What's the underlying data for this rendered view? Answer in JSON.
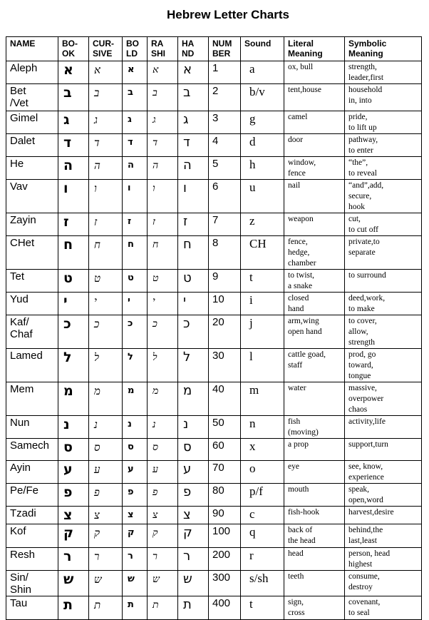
{
  "title": "Hebrew Letter Charts",
  "headers": [
    "NAME",
    "BO-\nOK",
    "CUR-\nSIVE",
    "BO\nLD",
    "RA\nSHI",
    "HA\nND",
    "NUM\nBER",
    "Sound",
    "Literal\nMeaning",
    "Symbolic\nMeaning"
  ],
  "rows": [
    {
      "name": "Aleph",
      "letter": "א",
      "number": "1",
      "sound": "a",
      "literal": "ox, bull",
      "symbolic": "strength,\nleader,first"
    },
    {
      "name": "Bet\n/Vet",
      "letter": "ב",
      "number": "2",
      "sound": "b/v",
      "literal": "tent,house",
      "symbolic": "household\nin,  into"
    },
    {
      "name": "Gimel",
      "letter": "ג",
      "number": "3",
      "sound": "g",
      "literal": "camel",
      "symbolic": "pride,\nto lift up"
    },
    {
      "name": "Dalet",
      "letter": "ד",
      "number": "4",
      "sound": "d",
      "literal": "door",
      "symbolic": "pathway,\nto enter"
    },
    {
      "name": "He",
      "letter": "ה",
      "number": "5",
      "sound": "h",
      "literal": "window,\nfence",
      "symbolic": "“the”,\nto reveal"
    },
    {
      "name": "Vav",
      "letter": "ו",
      "number": "6",
      "sound": "u",
      "literal": "nail",
      "symbolic": "“and”,add,\nsecure,\nhook"
    },
    {
      "name": "Zayin",
      "letter": "ז",
      "number": "7",
      "sound": "z",
      "literal": "weapon",
      "symbolic": "cut,\nto cut off"
    },
    {
      "name": "CHet",
      "letter": "ח",
      "number": "8",
      "sound": "CH",
      "literal": "fence,\nhedge,\nchamber",
      "symbolic": "private,to\nseparate"
    },
    {
      "name": "Tet",
      "letter": "ט",
      "number": "9",
      "sound": "t",
      "literal": "to twist,\na snake",
      "symbolic": "to surround"
    },
    {
      "name": "Yud",
      "letter": "י",
      "number": "10",
      "sound": "i",
      "literal": "closed\nhand",
      "symbolic": "deed,work,\nto make"
    },
    {
      "name": "Kaf/\nChaf",
      "letter": "כ",
      "number": "20",
      "sound": "j",
      "literal": "arm,wing\nopen hand",
      "symbolic": "to cover,\nallow,\nstrength"
    },
    {
      "name": "Lamed",
      "letter": "ל",
      "number": "30",
      "sound": "l",
      "literal": "cattle goad,\nstaff",
      "symbolic": "prod, go\ntoward,\ntongue"
    },
    {
      "name": "Mem",
      "letter": "מ",
      "number": "40",
      "sound": "m",
      "literal": "water",
      "symbolic": "massive,\noverpower\nchaos"
    },
    {
      "name": "Nun",
      "letter": "נ",
      "number": "50",
      "sound": "n",
      "literal": "fish\n(moving)",
      "symbolic": "activity,life"
    },
    {
      "name": "Samech",
      "letter": "ס",
      "number": "60",
      "sound": "x",
      "literal": "a prop",
      "symbolic": "support,turn"
    },
    {
      "name": "Ayin",
      "letter": "ע",
      "number": "70",
      "sound": "o",
      "literal": "eye",
      "symbolic": "see, know,\nexperience"
    },
    {
      "name": "Pe/Fe",
      "letter": "פ",
      "number": "80",
      "sound": "p/f",
      "literal": "mouth",
      "symbolic": "speak,\nopen,word"
    },
    {
      "name": "Tzadi",
      "letter": "צ",
      "number": "90",
      "sound": "c",
      "literal": "fish-hook",
      "symbolic": "harvest,desire"
    },
    {
      "name": "Kof",
      "letter": "ק",
      "number": "100",
      "sound": "q",
      "literal": "back of\nthe head",
      "symbolic": "behind,the\nlast,least"
    },
    {
      "name": "Resh",
      "letter": "ר",
      "number": "200",
      "sound": "r",
      "literal": "head",
      "symbolic": "person, head\n highest"
    },
    {
      "name": "Sin/\nShin",
      "letter": "ש",
      "number": "300",
      "sound": "s/sh",
      "literal": "teeth",
      "symbolic": "consume,\ndestroy"
    },
    {
      "name": "Tau",
      "letter": "ת",
      "number": "400",
      "sound": "t",
      "literal": "sign,\ncross",
      "symbolic": "covenant,\nto seal"
    }
  ]
}
